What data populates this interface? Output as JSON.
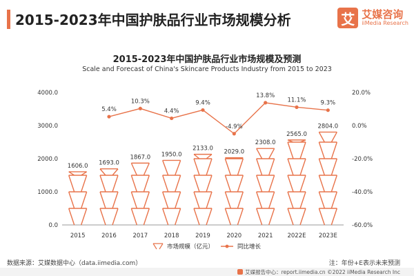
{
  "page": {
    "title": "2015-2023年中国护肤品行业市场规模分析"
  },
  "brand": {
    "logo_char": "艾",
    "name_cn": "艾媒咨询",
    "name_en": "iiMedia Research",
    "accent_color": "#e8734a"
  },
  "footer": {
    "source": "数据来源：艾媒数据中心（data.iimedia.com）",
    "note": "注：年份+E表示未来预测",
    "report_line": "艾媒报告中心：report.iimedia.cn  ©2022  iiMedia Research  Inc"
  },
  "chart_data": {
    "type": "bar",
    "title": "2015-2023年中国护肤品行业市场规模及预测",
    "subtitle": "Scale and Forecast of China's Skincare Products Industry from 2015 to 2023",
    "categories": [
      "2015",
      "2016",
      "2017",
      "2018",
      "2019",
      "2020",
      "2021",
      "2022E",
      "2023E"
    ],
    "series": [
      {
        "name": "市场规模（亿元）",
        "type": "bar",
        "axis": "left",
        "values": [
          1606.0,
          1693.0,
          1867.0,
          1950.0,
          2133.0,
          2029.0,
          2308.0,
          2565.0,
          2804.0
        ],
        "labels": [
          "1606.0",
          "1693.0",
          "1867.0",
          "1950.0",
          "2133.0",
          "2029.0",
          "2308.0",
          "2565.0",
          "2804.0"
        ],
        "color": "#e8734a"
      },
      {
        "name": "同比增长",
        "type": "line",
        "axis": "right",
        "values": [
          null,
          5.4,
          10.3,
          4.4,
          9.4,
          -4.9,
          13.8,
          11.1,
          9.3
        ],
        "labels": [
          "",
          "5.4%",
          "10.3%",
          "4.4%",
          "9.4%",
          "-4.9%",
          "13.8%",
          "11.1%",
          "9.3%"
        ],
        "color": "#e8734a"
      }
    ],
    "y_left": {
      "range": [
        0,
        4000
      ],
      "ticks": [
        0,
        1000,
        2000,
        3000,
        4000
      ],
      "tick_labels": [
        "0.0",
        "1000.0",
        "2000.0",
        "3000.0",
        "4000.0"
      ]
    },
    "y_right": {
      "range": [
        -60,
        20
      ],
      "ticks": [
        -60,
        -40,
        -20,
        0,
        20
      ],
      "tick_labels": [
        "-60.0%",
        "-40.0%",
        "-20.0%",
        "0.0%",
        "20.0%"
      ]
    },
    "legend_position": "bottom",
    "grid": false
  }
}
